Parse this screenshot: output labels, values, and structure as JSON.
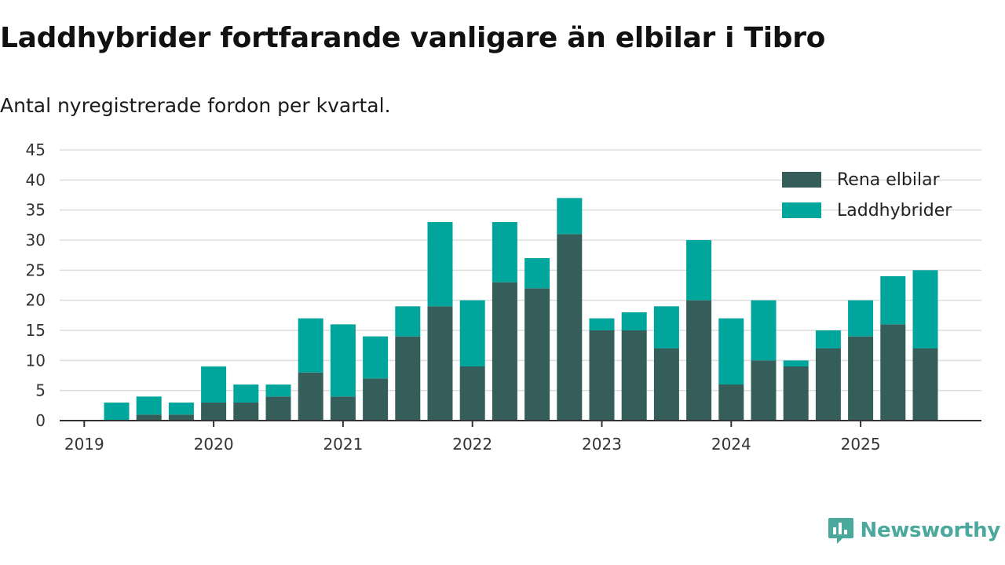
{
  "title": "Laddhybrider fortfarande vanligare än elbilar i Tibro",
  "subtitle": "Antal nyregistrerade fordon per kvartal.",
  "brand": "Newsworthy",
  "colors": {
    "elbilar": "#355e5b",
    "laddhybrider": "#00a69c",
    "grid": "#dddddd",
    "axis": "#333333",
    "brand": "#4aa89c"
  },
  "chart_data": {
    "type": "bar",
    "stacked": true,
    "title": "Laddhybrider fortfarande vanligare än elbilar i Tibro",
    "subtitle": "Antal nyregistrerade fordon per kvartal.",
    "xlabel": "",
    "ylabel": "",
    "ylim": [
      0,
      45
    ],
    "yticks": [
      0,
      5,
      10,
      15,
      20,
      25,
      30,
      35,
      40,
      45
    ],
    "grid": true,
    "legend_position": "top-right",
    "categories": [
      "2019 Q1",
      "2019 Q2",
      "2019 Q3",
      "2019 Q4",
      "2020 Q1",
      "2020 Q2",
      "2020 Q3",
      "2020 Q4",
      "2021 Q1",
      "2021 Q2",
      "2021 Q3",
      "2021 Q4",
      "2022 Q1",
      "2022 Q2",
      "2022 Q3",
      "2022 Q4",
      "2023 Q1",
      "2023 Q2",
      "2023 Q3",
      "2023 Q4",
      "2024 Q1",
      "2024 Q2",
      "2024 Q3",
      "2024 Q4",
      "2025 Q1",
      "2025 Q2",
      "2025 Q3"
    ],
    "xtick_labels": [
      "2019",
      "2020",
      "2021",
      "2022",
      "2023",
      "2024",
      "2025"
    ],
    "series": [
      {
        "name": "Rena elbilar",
        "color": "#355e5b",
        "values": [
          0,
          1,
          1,
          3,
          3,
          4,
          8,
          4,
          7,
          14,
          19,
          9,
          23,
          22,
          31,
          15,
          15,
          12,
          20,
          6,
          10,
          9,
          12,
          14,
          16,
          12,
          0
        ]
      },
      {
        "name": "Laddhybrider",
        "color": "#00a69c",
        "values": [
          3,
          3,
          2,
          6,
          3,
          2,
          9,
          12,
          7,
          5,
          14,
          11,
          10,
          5,
          6,
          2,
          3,
          7,
          10,
          11,
          10,
          1,
          3,
          6,
          8,
          13,
          0
        ]
      }
    ]
  }
}
